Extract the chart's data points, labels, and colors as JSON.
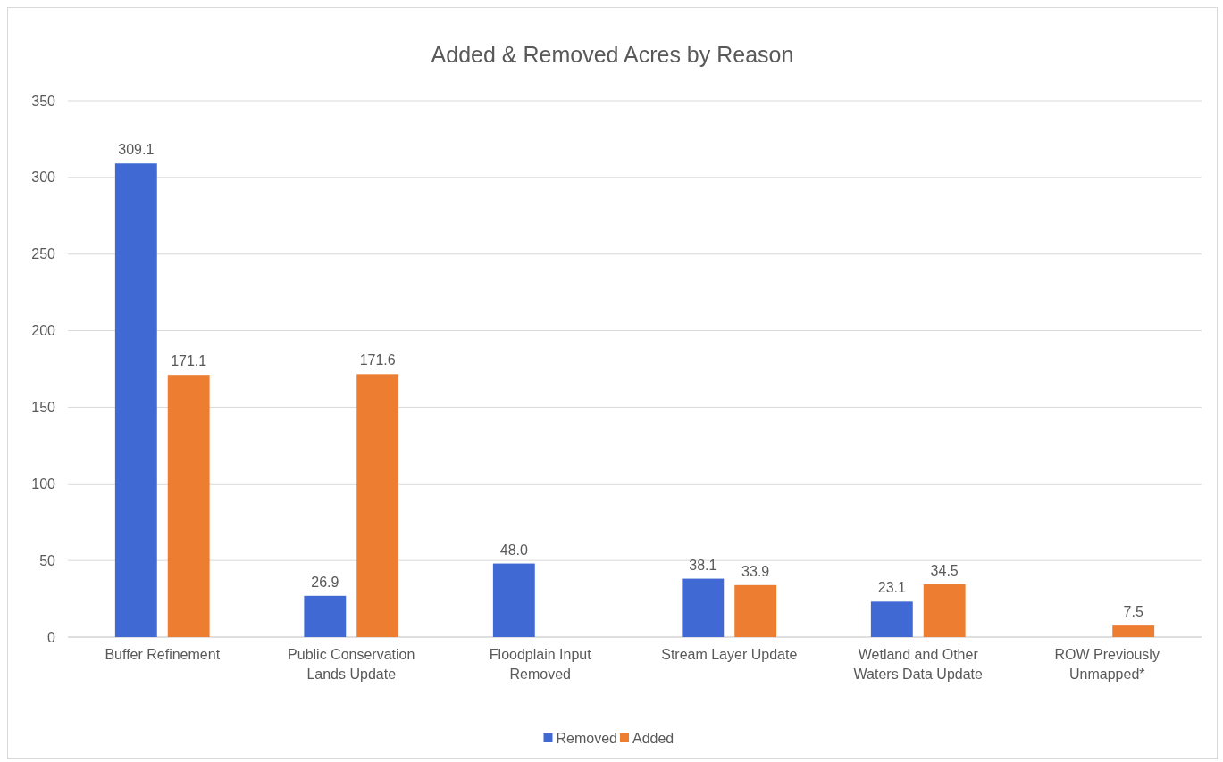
{
  "chart_data": {
    "type": "bar",
    "title": "Added & Removed Acres by Reason",
    "categories": [
      "Buffer Refinement",
      "Public Conservation Lands Update",
      "Floodplain Input Removed",
      "Stream Layer Update",
      "Wetland and Other Waters Data Update",
      "ROW Previously Unmapped*"
    ],
    "series": [
      {
        "name": "Removed",
        "color": "#4169d4",
        "values": [
          309.1,
          26.9,
          48.0,
          38.1,
          23.1,
          null
        ],
        "value_labels": [
          "309.1",
          "26.9",
          "48.0",
          "38.1",
          "23.1",
          null
        ]
      },
      {
        "name": "Added",
        "color": "#ed7d31",
        "values": [
          171.1,
          171.6,
          null,
          33.9,
          34.5,
          7.5
        ],
        "value_labels": [
          "171.1",
          "171.6",
          null,
          "33.9",
          "34.5",
          "7.5"
        ]
      }
    ],
    "ylim": [
      0,
      350
    ],
    "yticks": [
      0,
      50,
      100,
      150,
      200,
      250,
      300,
      350
    ],
    "grid": "y",
    "legend": "bottom"
  }
}
